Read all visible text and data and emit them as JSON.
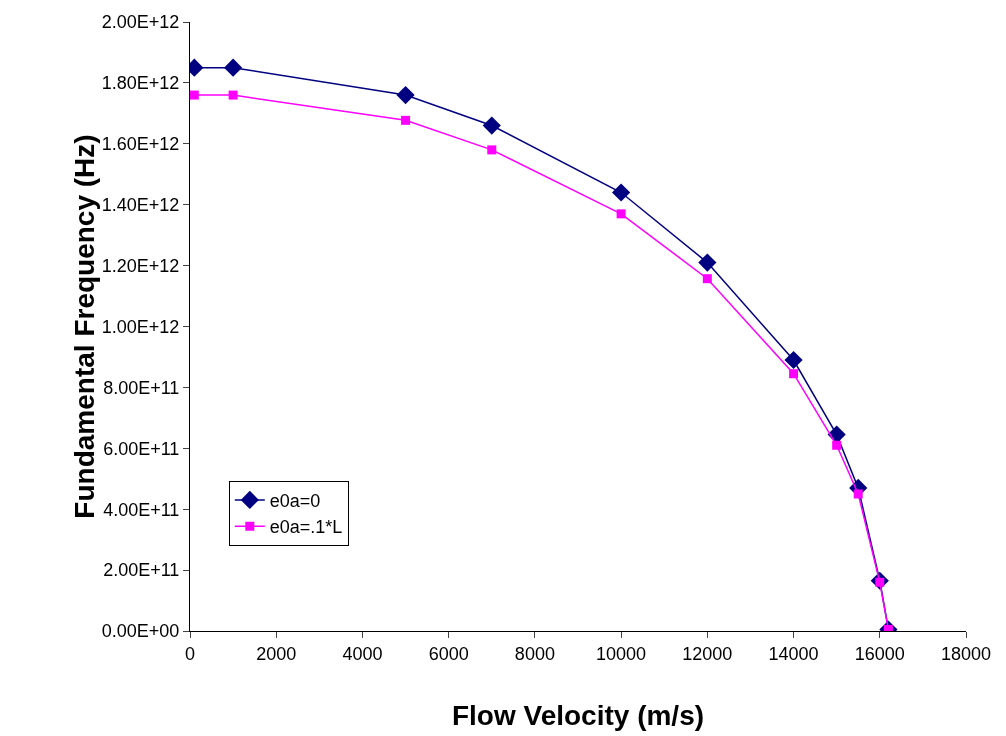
{
  "chart_data": {
    "type": "line",
    "xlabel": "Flow Velocity (m/s)",
    "ylabel": "Fundamental Frequency (Hz)",
    "x": [
      100,
      1000,
      5000,
      7000,
      10000,
      12000,
      14000,
      15000,
      15500,
      16000,
      16200
    ],
    "series": [
      {
        "name": "e0a=0",
        "color": "#000080",
        "marker": "diamond",
        "values": [
          1850000000000.0,
          1850000000000.0,
          1760000000000.0,
          1660000000000.0,
          1440000000000.0,
          1210000000000.0,
          890000000000.0,
          645000000000.0,
          470000000000.0,
          165000000000.0,
          5000000000.0
        ]
      },
      {
        "name": "e0a=.1*L",
        "color": "#ff00ff",
        "marker": "square",
        "values": [
          1760000000000.0,
          1760000000000.0,
          1677000000000.0,
          1580000000000.0,
          1370000000000.0,
          1157000000000.0,
          845000000000.0,
          610000000000.0,
          450000000000.0,
          160000000000.0,
          5000000000.0
        ]
      }
    ],
    "xlim": [
      0,
      18000
    ],
    "xticks": [
      0,
      2000,
      4000,
      6000,
      8000,
      10000,
      12000,
      14000,
      16000,
      18000
    ],
    "ylim": [
      0,
      2000000000000.0
    ],
    "yticks": [
      {
        "value": 0,
        "label": "0.00E+00"
      },
      {
        "value": 200000000000.0,
        "label": "2.00E+11"
      },
      {
        "value": 400000000000.0,
        "label": "4.00E+11"
      },
      {
        "value": 600000000000.0,
        "label": "6.00E+11"
      },
      {
        "value": 800000000000.0,
        "label": "8.00E+11"
      },
      {
        "value": 1000000000000.0,
        "label": "1.00E+12"
      },
      {
        "value": 1200000000000.0,
        "label": "1.20E+12"
      },
      {
        "value": 1400000000000.0,
        "label": "1.40E+12"
      },
      {
        "value": 1600000000000.0,
        "label": "1.60E+12"
      },
      {
        "value": 1800000000000.0,
        "label": "1.80E+12"
      },
      {
        "value": 2000000000000.0,
        "label": "2.00E+12"
      }
    ],
    "grid": false,
    "legend": "bottom left",
    "line_style": "solid"
  }
}
